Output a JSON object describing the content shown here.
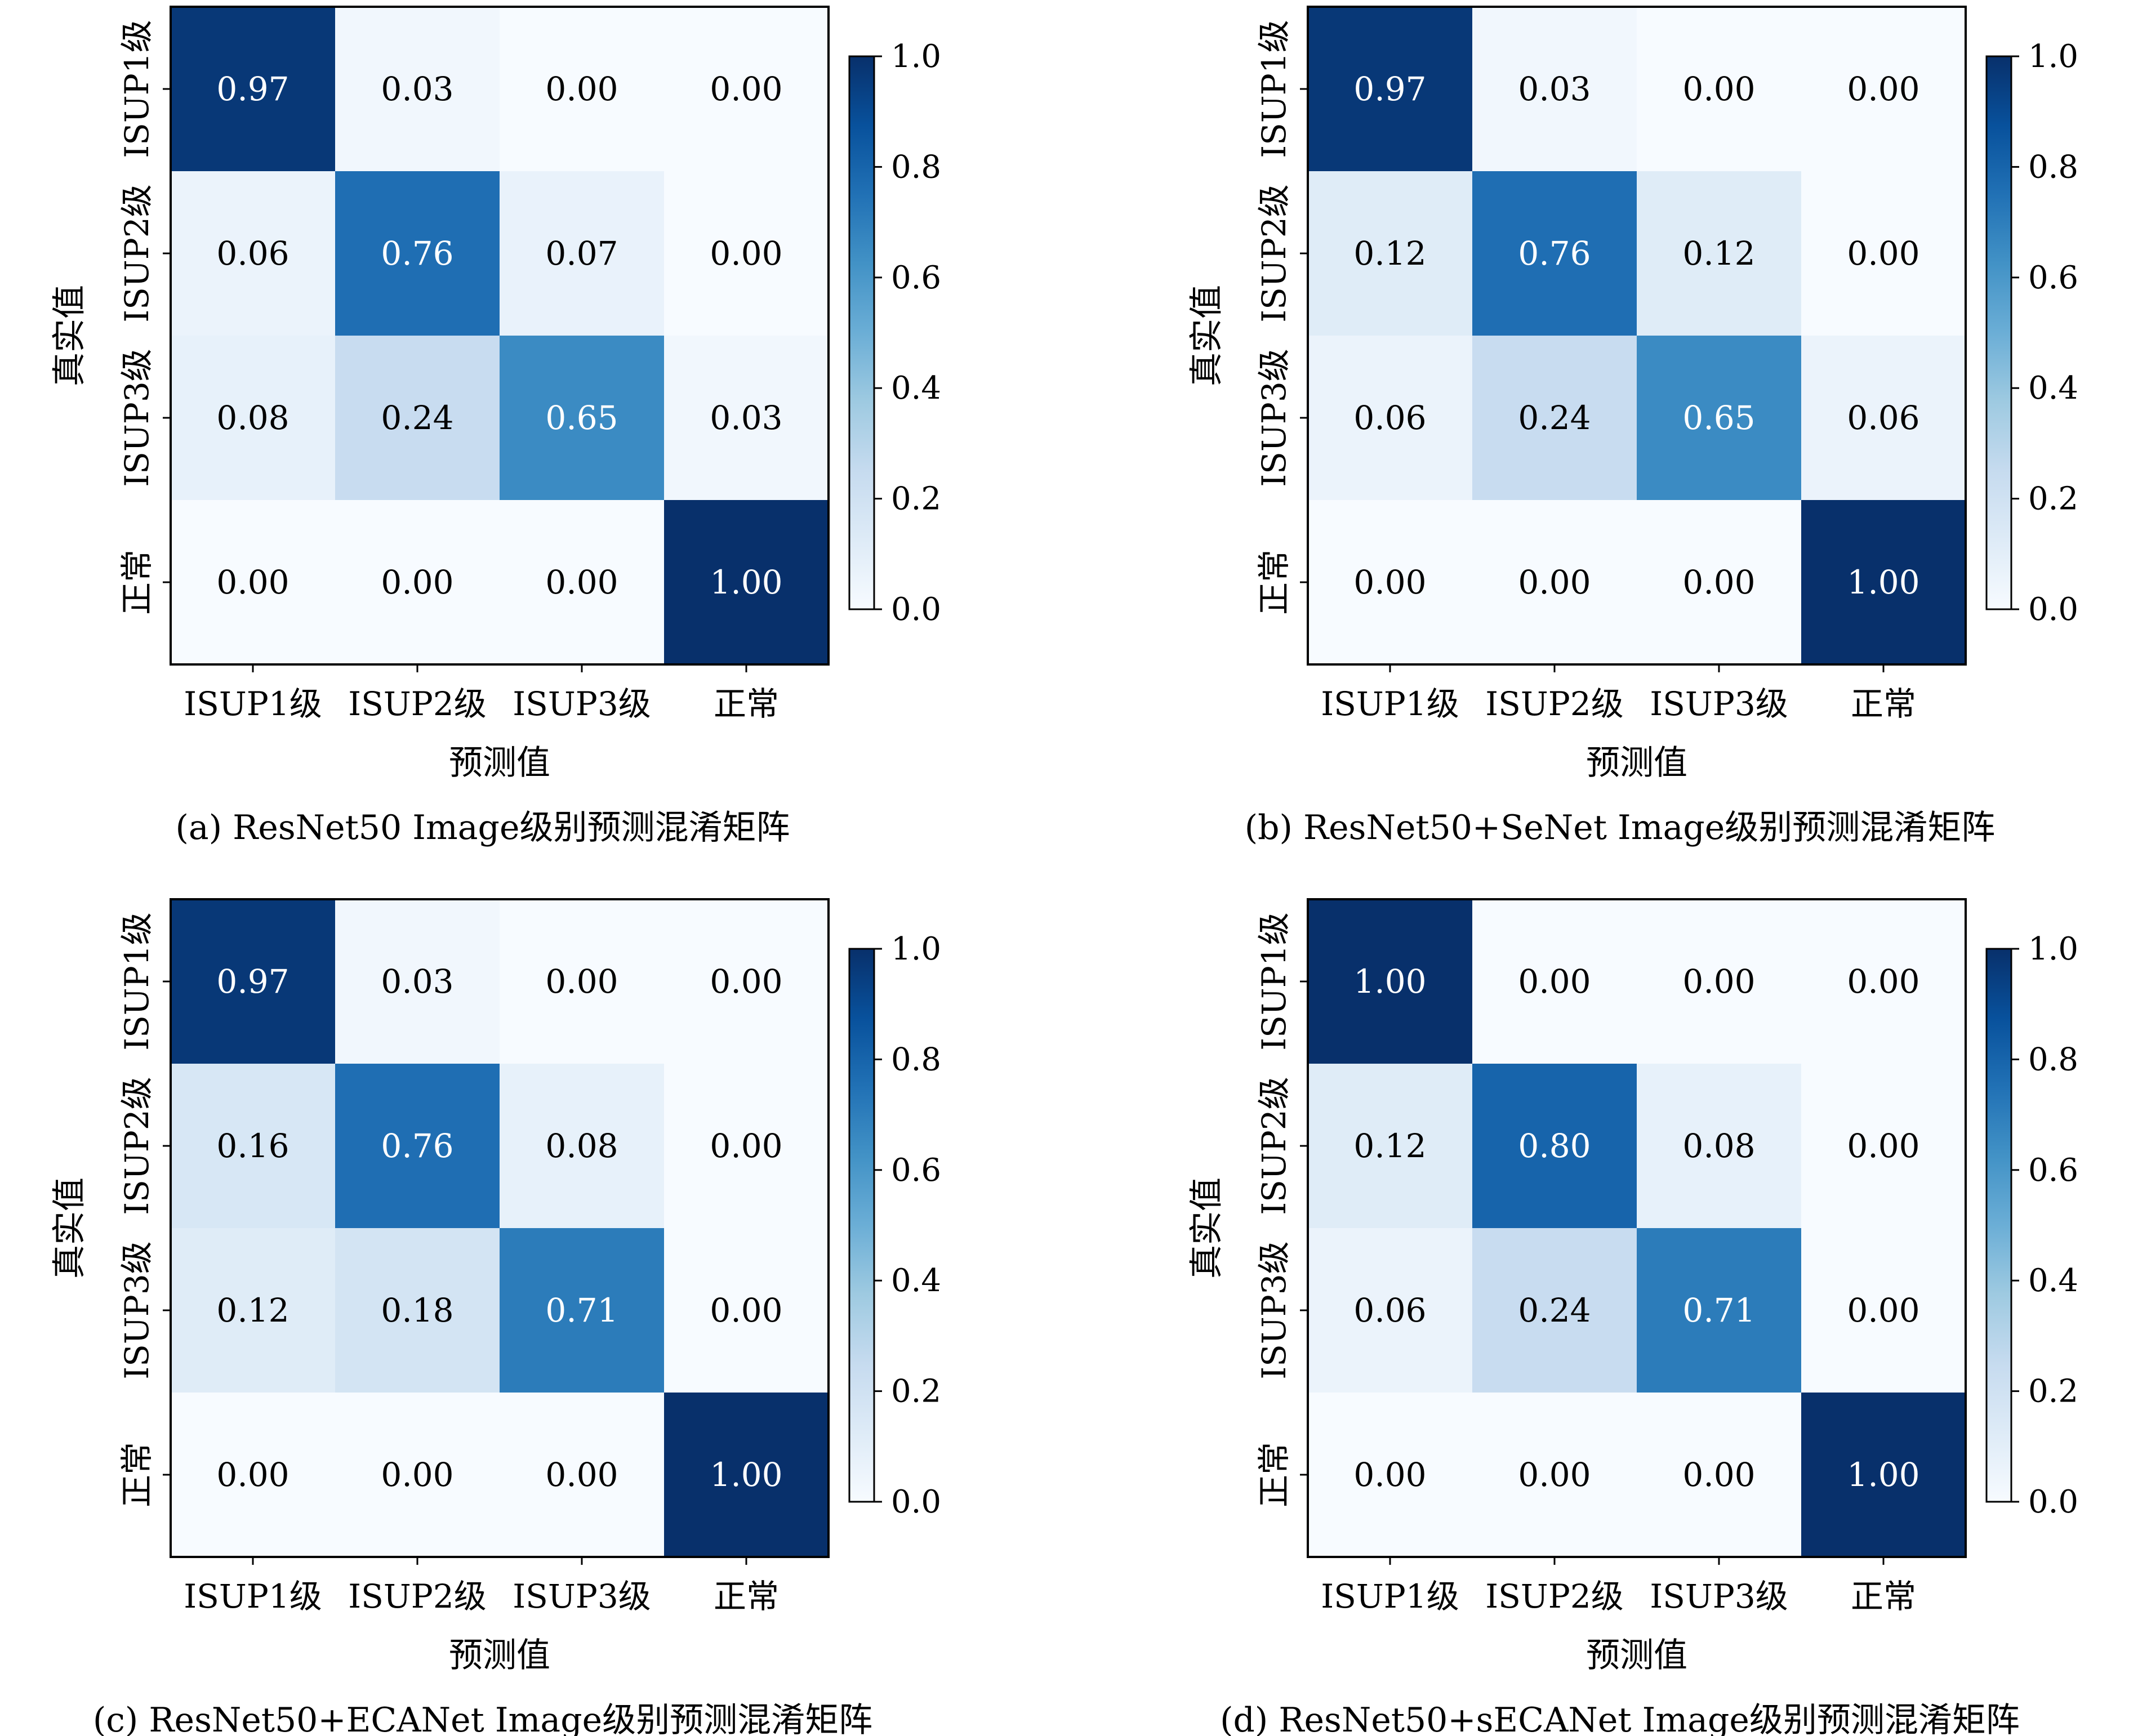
{
  "chart_data": [
    {
      "type": "heatmap",
      "caption": "(a) ResNet50 Image级别预测混淆矩阵",
      "xlabel": "预测值",
      "ylabel": "真实值",
      "x_categories": [
        "ISUP1级",
        "ISUP2级",
        "ISUP3级",
        "正常"
      ],
      "y_categories": [
        "ISUP1级",
        "ISUP2级",
        "ISUP3级",
        "正常"
      ],
      "values": [
        [
          0.97,
          0.03,
          0.0,
          0.0
        ],
        [
          0.06,
          0.76,
          0.07,
          0.0
        ],
        [
          0.08,
          0.24,
          0.65,
          0.03
        ],
        [
          0.0,
          0.0,
          0.0,
          1.0
        ]
      ],
      "colorbar": {
        "range": [
          0,
          1
        ],
        "ticks": [
          "0.0",
          "0.2",
          "0.4",
          "0.6",
          "0.8",
          "1.0"
        ]
      }
    },
    {
      "type": "heatmap",
      "caption": "(b) ResNet50+SeNet Image级别预测混淆矩阵",
      "xlabel": "预测值",
      "ylabel": "真实值",
      "x_categories": [
        "ISUP1级",
        "ISUP2级",
        "ISUP3级",
        "正常"
      ],
      "y_categories": [
        "ISUP1级",
        "ISUP2级",
        "ISUP3级",
        "正常"
      ],
      "values": [
        [
          0.97,
          0.03,
          0.0,
          0.0
        ],
        [
          0.12,
          0.76,
          0.12,
          0.0
        ],
        [
          0.06,
          0.24,
          0.65,
          0.06
        ],
        [
          0.0,
          0.0,
          0.0,
          1.0
        ]
      ],
      "colorbar": {
        "range": [
          0,
          1
        ],
        "ticks": [
          "0.0",
          "0.2",
          "0.4",
          "0.6",
          "0.8",
          "1.0"
        ]
      }
    },
    {
      "type": "heatmap",
      "caption": "(c) ResNet50+ECANet Image级别预测混淆矩阵",
      "xlabel": "预测值",
      "ylabel": "真实值",
      "x_categories": [
        "ISUP1级",
        "ISUP2级",
        "ISUP3级",
        "正常"
      ],
      "y_categories": [
        "ISUP1级",
        "ISUP2级",
        "ISUP3级",
        "正常"
      ],
      "values": [
        [
          0.97,
          0.03,
          0.0,
          0.0
        ],
        [
          0.16,
          0.76,
          0.08,
          0.0
        ],
        [
          0.12,
          0.18,
          0.71,
          0.0
        ],
        [
          0.0,
          0.0,
          0.0,
          1.0
        ]
      ],
      "colorbar": {
        "range": [
          0,
          1
        ],
        "ticks": [
          "0.0",
          "0.2",
          "0.4",
          "0.6",
          "0.8",
          "1.0"
        ]
      }
    },
    {
      "type": "heatmap",
      "caption": "(d) ResNet50+sECANet Image级别预测混淆矩阵",
      "xlabel": "预测值",
      "ylabel": "真实值",
      "x_categories": [
        "ISUP1级",
        "ISUP2级",
        "ISUP3级",
        "正常"
      ],
      "y_categories": [
        "ISUP1级",
        "ISUP2级",
        "ISUP3级",
        "正常"
      ],
      "values": [
        [
          1.0,
          0.0,
          0.0,
          0.0
        ],
        [
          0.12,
          0.8,
          0.08,
          0.0
        ],
        [
          0.06,
          0.24,
          0.71,
          0.0
        ],
        [
          0.0,
          0.0,
          0.0,
          1.0
        ]
      ],
      "colorbar": {
        "range": [
          0,
          1
        ],
        "ticks": [
          "0.0",
          "0.2",
          "0.4",
          "0.6",
          "0.8",
          "1.0"
        ]
      }
    }
  ]
}
